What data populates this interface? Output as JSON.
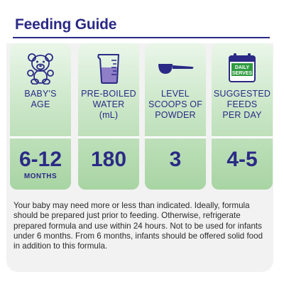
{
  "title": "Feeding Guide",
  "colors": {
    "brand": "#2b2a86",
    "card_green_top": "#eaf6e9",
    "card_green_bottom": "#a8d4a3",
    "calendar_green": "#2e9b3f"
  },
  "columns": [
    {
      "icon": "teddy-bear-icon",
      "label_lines": [
        "BABY'S",
        "AGE"
      ],
      "value": "6-12",
      "unit": "MONTHS"
    },
    {
      "icon": "measuring-jug-icon",
      "label_lines": [
        "PRE-BOILED",
        "WATER",
        "(mL)"
      ],
      "value": "180",
      "unit": ""
    },
    {
      "icon": "scoop-icon",
      "label_lines": [
        "LEVEL",
        "SCOOPS OF",
        "POWDER"
      ],
      "value": "3",
      "unit": ""
    },
    {
      "icon": "calendar-icon",
      "icon_text": [
        "DAILY",
        "SERVES"
      ],
      "label_lines": [
        "SUGGESTED",
        "FEEDS",
        "PER DAY"
      ],
      "value": "4-5",
      "unit": ""
    }
  ],
  "note": "Your baby may need more or less than indicated. Ideally, formula should be prepared just prior to feeding. Otherwise, refrigerate prepared formula and use within 24 hours. Not to be used for infants under 6 months. From 6 months, infants should be offered solid food in addition to this formula."
}
